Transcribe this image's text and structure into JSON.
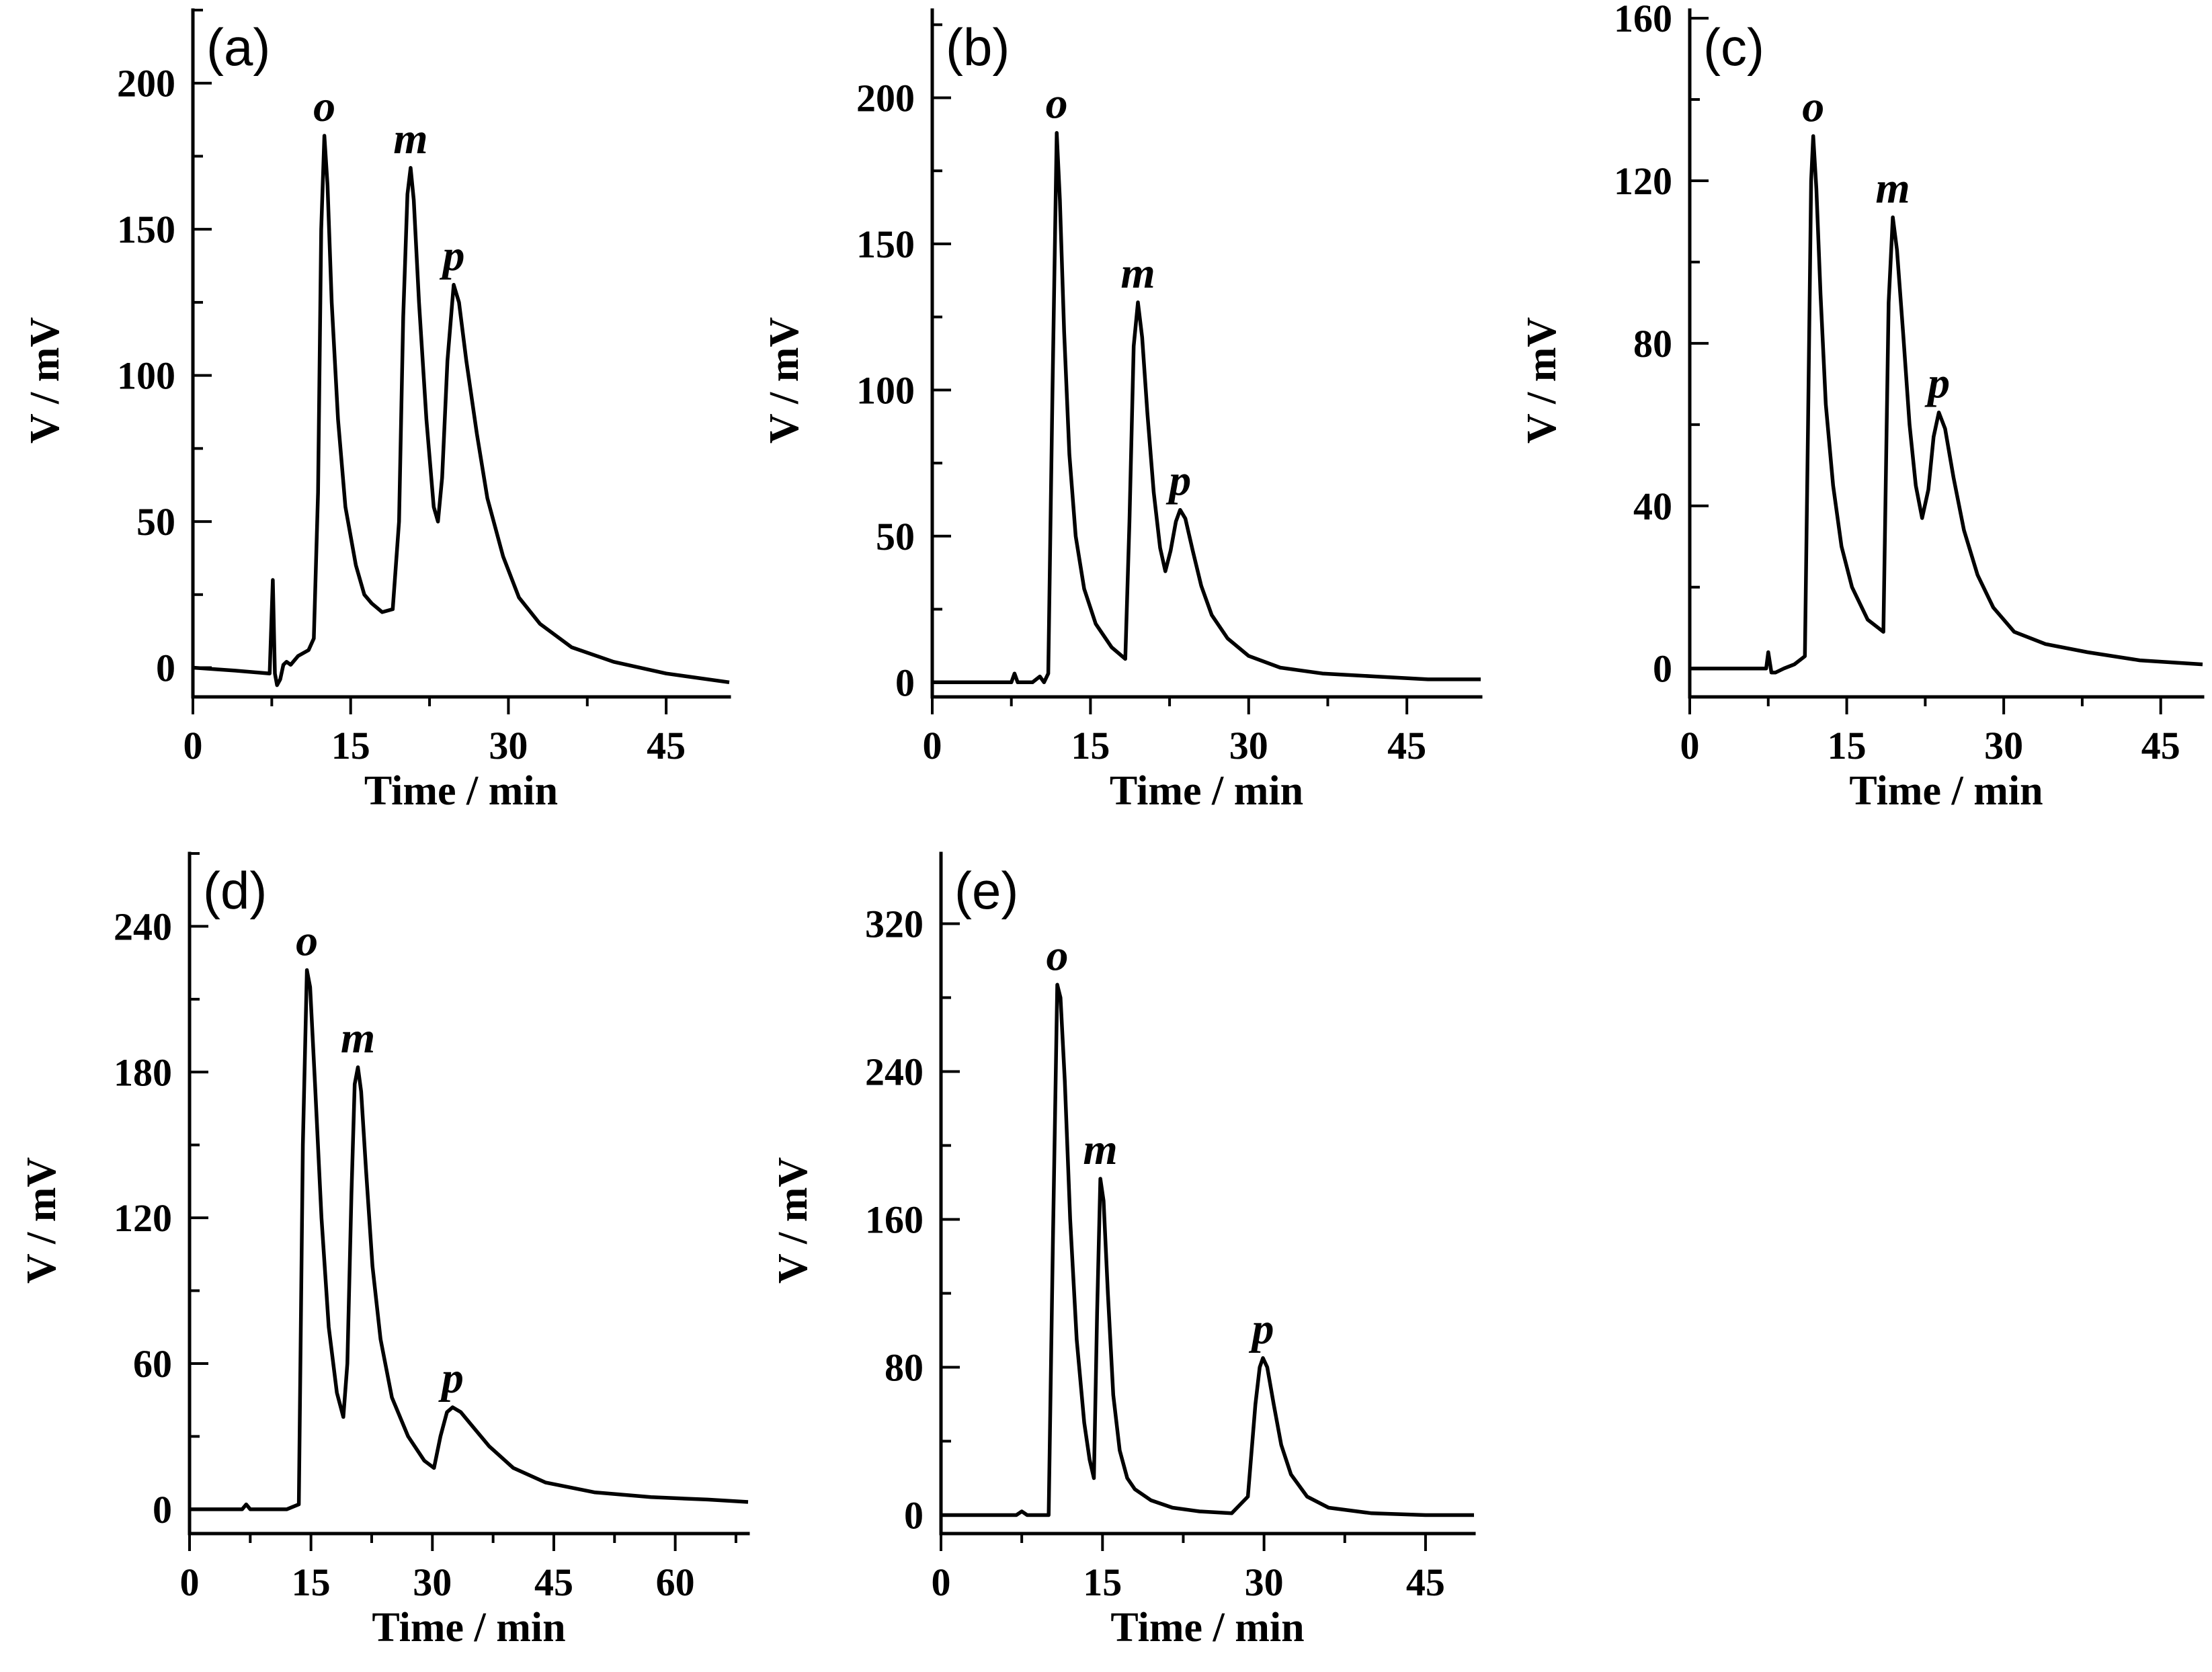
{
  "chart_data": [
    {
      "id": "a",
      "type": "line",
      "panel_label": "(a)",
      "xlabel": "Time / min",
      "ylabel": "V / mV",
      "xlim": [
        0,
        51
      ],
      "ylim": [
        -10,
        225
      ],
      "xticks": [
        0,
        15,
        30,
        45
      ],
      "yticks": [
        0,
        50,
        100,
        150,
        200
      ],
      "peaks": [
        {
          "label": "o",
          "t": 12.5,
          "v": 182
        },
        {
          "label": "m",
          "t": 20.7,
          "v": 171
        },
        {
          "label": "p",
          "t": 24.8,
          "v": 131
        }
      ],
      "series": [
        {
          "name": "chromatogram",
          "x": [
            0,
            4,
            7.3,
            7.6,
            7.8,
            8.0,
            8.3,
            8.6,
            8.9,
            9.3,
            10,
            11,
            11.5,
            11.9,
            12.2,
            12.5,
            12.8,
            13.2,
            13.8,
            14.5,
            15.5,
            16.3,
            17,
            18,
            19,
            19.6,
            20.0,
            20.4,
            20.7,
            21.0,
            21.5,
            22.2,
            22.9,
            23.3,
            23.7,
            24.2,
            24.8,
            25.3,
            26,
            27,
            28,
            29.5,
            31,
            33,
            36,
            40,
            45,
            51
          ],
          "y": [
            0,
            -1,
            -2,
            30,
            -2,
            -6,
            -4,
            1,
            2,
            1,
            4,
            6,
            10,
            60,
            150,
            182,
            165,
            125,
            85,
            55,
            35,
            25,
            22,
            19,
            20,
            50,
            120,
            162,
            171,
            160,
            125,
            85,
            55,
            50,
            65,
            105,
            131,
            125,
            105,
            80,
            58,
            38,
            24,
            15,
            7,
            2,
            -2,
            -5
          ]
        }
      ]
    },
    {
      "id": "b",
      "type": "line",
      "panel_label": "(b)",
      "xlabel": "Time / min",
      "ylabel": "V / mV",
      "xlim": [
        0,
        52
      ],
      "ylim": [
        -5,
        230
      ],
      "xticks": [
        0,
        15,
        30,
        45
      ],
      "yticks": [
        0,
        50,
        100,
        150,
        200
      ],
      "peaks": [
        {
          "label": "o",
          "t": 11.8,
          "v": 188
        },
        {
          "label": "m",
          "t": 19.5,
          "v": 130
        },
        {
          "label": "p",
          "t": 23.5,
          "v": 59
        }
      ],
      "series": [
        {
          "name": "chromatogram",
          "x": [
            0,
            6,
            7.5,
            7.8,
            8.1,
            9.5,
            10.2,
            10.6,
            11,
            11.4,
            11.8,
            12.1,
            12.5,
            13,
            13.6,
            14.4,
            15.5,
            17,
            18.3,
            18.7,
            19.1,
            19.5,
            19.9,
            20.4,
            21,
            21.6,
            22.1,
            22.6,
            23.1,
            23.5,
            24,
            24.7,
            25.5,
            26.5,
            28,
            30,
            33,
            37,
            42,
            47,
            52
          ],
          "y": [
            0,
            0,
            0,
            3,
            0,
            0,
            2,
            0,
            3,
            100,
            188,
            165,
            120,
            78,
            50,
            32,
            20,
            12,
            8,
            55,
            115,
            130,
            118,
            92,
            65,
            46,
            38,
            45,
            55,
            59,
            56,
            45,
            33,
            23,
            15,
            9,
            5,
            3,
            2,
            1,
            1
          ]
        }
      ]
    },
    {
      "id": "c",
      "type": "line",
      "panel_label": "(c)",
      "xlabel": "Time / min",
      "ylabel": "V / mV",
      "xlim": [
        0,
        49
      ],
      "ylim": [
        -7,
        162
      ],
      "xticks": [
        0,
        15,
        30,
        45
      ],
      "yticks": [
        0,
        40,
        80,
        120,
        160
      ],
      "peaks": [
        {
          "label": "o",
          "t": 11.8,
          "v": 131
        },
        {
          "label": "m",
          "t": 19.4,
          "v": 111
        },
        {
          "label": "p",
          "t": 23.8,
          "v": 63
        }
      ],
      "series": [
        {
          "name": "chromatogram",
          "x": [
            0,
            6,
            7.3,
            7.5,
            7.8,
            8.2,
            9,
            10,
            11,
            11.3,
            11.6,
            11.8,
            12.1,
            12.5,
            13,
            13.7,
            14.5,
            15.5,
            17,
            18.5,
            19,
            19.4,
            19.8,
            20.4,
            21,
            21.6,
            22.2,
            22.8,
            23.3,
            23.8,
            24.4,
            25.2,
            26.2,
            27.5,
            29,
            31,
            34,
            38,
            43,
            49
          ],
          "y": [
            0,
            0,
            0,
            4,
            -1,
            -1,
            0,
            1,
            3,
            60,
            120,
            131,
            118,
            92,
            65,
            45,
            30,
            20,
            12,
            9,
            90,
            111,
            103,
            82,
            60,
            45,
            37,
            44,
            57,
            63,
            59,
            47,
            34,
            23,
            15,
            9,
            6,
            4,
            2,
            1
          ]
        }
      ]
    },
    {
      "id": "d",
      "type": "line",
      "panel_label": "(d)",
      "xlabel": "Time / min",
      "ylabel": "V / mV",
      "xlim": [
        0,
        69
      ],
      "ylim": [
        -10,
        270
      ],
      "xticks": [
        0,
        15,
        30,
        45,
        60
      ],
      "yticks": [
        0,
        60,
        120,
        180,
        240
      ],
      "peaks": [
        {
          "label": "o",
          "t": 14.5,
          "v": 222
        },
        {
          "label": "m",
          "t": 20.8,
          "v": 182
        },
        {
          "label": "p",
          "t": 32.5,
          "v": 42
        }
      ],
      "series": [
        {
          "name": "chromatogram",
          "x": [
            0,
            6.5,
            7.0,
            7.5,
            12,
            13.5,
            14.0,
            14.5,
            14.9,
            15.5,
            16.3,
            17.2,
            18.2,
            19.0,
            19.5,
            20.0,
            20.4,
            20.8,
            21.2,
            21.8,
            22.6,
            23.6,
            25,
            27,
            29,
            30.2,
            31,
            31.8,
            32.5,
            33.5,
            35,
            37,
            40,
            44,
            50,
            57,
            64,
            69
          ],
          "y": [
            0,
            0,
            2,
            0,
            0,
            2,
            150,
            222,
            215,
            175,
            120,
            75,
            48,
            38,
            60,
            130,
            175,
            182,
            172,
            140,
            100,
            70,
            46,
            30,
            20,
            17,
            30,
            40,
            42,
            40,
            34,
            26,
            17,
            11,
            7,
            5,
            4,
            3
          ]
        }
      ]
    },
    {
      "id": "e",
      "type": "line",
      "panel_label": "(e)",
      "xlabel": "Time / min",
      "ylabel": "V / mV",
      "xlim": [
        0,
        49.5
      ],
      "ylim": [
        -10,
        358
      ],
      "xticks": [
        0,
        15,
        30,
        45
      ],
      "yticks": [
        0,
        80,
        160,
        240,
        320
      ],
      "peaks": [
        {
          "label": "o",
          "t": 10.8,
          "v": 287
        },
        {
          "label": "m",
          "t": 14.8,
          "v": 182
        },
        {
          "label": "p",
          "t": 29.9,
          "v": 85
        }
      ],
      "series": [
        {
          "name": "chromatogram",
          "x": [
            0,
            7,
            7.5,
            8,
            10,
            10.4,
            10.8,
            11.1,
            11.5,
            12,
            12.6,
            13.3,
            13.8,
            14.2,
            14.5,
            14.8,
            15.1,
            15.5,
            16,
            16.6,
            17.3,
            18,
            19.5,
            21.5,
            24,
            27,
            28.5,
            29.2,
            29.6,
            29.9,
            30.3,
            30.9,
            31.6,
            32.5,
            34,
            36,
            40,
            45,
            49.5
          ],
          "y": [
            0,
            0,
            2,
            0,
            0,
            150,
            287,
            280,
            235,
            160,
            95,
            50,
            30,
            20,
            110,
            182,
            170,
            120,
            65,
            35,
            20,
            14,
            8,
            4,
            2,
            1,
            10,
            60,
            80,
            85,
            80,
            60,
            38,
            22,
            10,
            4,
            1,
            0,
            0
          ]
        }
      ]
    }
  ]
}
